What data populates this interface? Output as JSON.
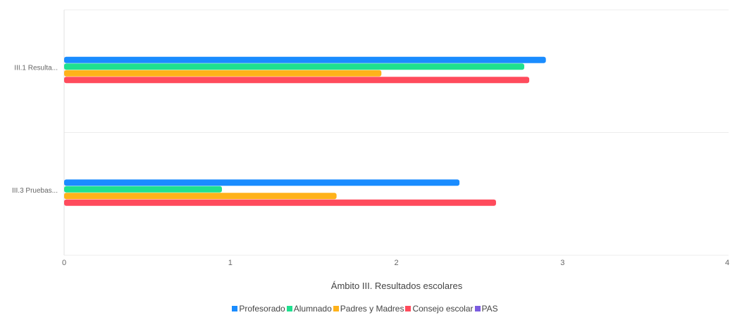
{
  "chart_data": {
    "type": "bar",
    "orientation": "horizontal",
    "categories": [
      "III.1 Resulta...",
      "III.3 Pruebas..."
    ],
    "series": [
      {
        "name": "Profesorado",
        "color": "#1a8cff",
        "values": [
          2.9,
          2.38
        ]
      },
      {
        "name": "Alumnado",
        "color": "#1fe08f",
        "values": [
          2.77,
          0.95
        ]
      },
      {
        "name": "Padres y Madres",
        "color": "#ffb21a",
        "values": [
          1.91,
          1.64
        ]
      },
      {
        "name": "Consejo escolar",
        "color": "#ff4b5c",
        "values": [
          2.8,
          2.6
        ]
      },
      {
        "name": "PAS",
        "color": "#7b5ce0",
        "values": [
          0,
          0
        ]
      }
    ],
    "xlim": [
      0,
      4
    ],
    "xticks": [
      "0",
      "1",
      "2",
      "3",
      "4"
    ],
    "xlabel": "Ámbito III. Resultados escolares",
    "ylabel": "",
    "grid": true,
    "legend_position": "bottom"
  }
}
